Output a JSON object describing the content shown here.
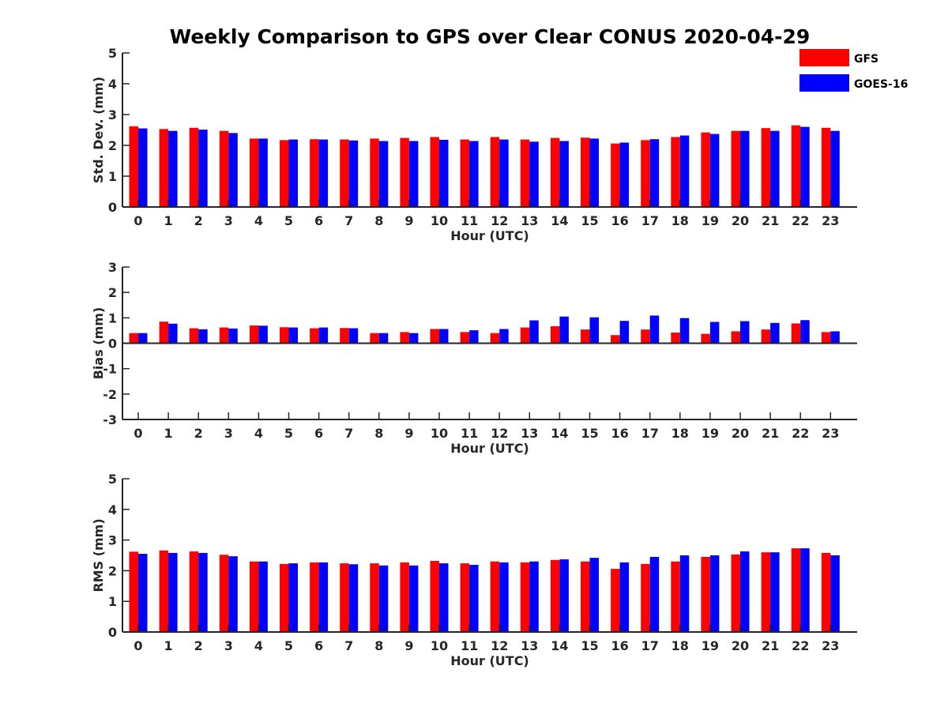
{
  "figure": {
    "title": "Weekly Comparison to GPS over Clear CONUS 2020-04-29"
  },
  "legend": {
    "placement": "top-right",
    "entries": [
      {
        "label": "GFS",
        "color": "#ff0000"
      },
      {
        "label": "GOES-16",
        "color": "#0000ff"
      }
    ]
  },
  "chart_data": [
    {
      "type": "bar",
      "xlabel": "Hour (UTC)",
      "ylabel": "Std. Dev. (mm)",
      "ylim": [
        0,
        5
      ],
      "yticks": [
        0,
        1,
        2,
        3,
        4,
        5
      ],
      "grid": false,
      "categories": [
        "0",
        "1",
        "2",
        "3",
        "4",
        "5",
        "6",
        "7",
        "8",
        "9",
        "10",
        "11",
        "12",
        "13",
        "14",
        "15",
        "16",
        "17",
        "18",
        "19",
        "20",
        "21",
        "22",
        "23"
      ],
      "series": [
        {
          "name": "GFS",
          "color": "#ff0000",
          "values": [
            2.62,
            2.53,
            2.57,
            2.47,
            2.22,
            2.17,
            2.2,
            2.19,
            2.22,
            2.24,
            2.27,
            2.19,
            2.27,
            2.19,
            2.24,
            2.25,
            2.06,
            2.17,
            2.27,
            2.42,
            2.47,
            2.56,
            2.65,
            2.57
          ]
        },
        {
          "name": "GOES-16",
          "color": "#0000ff",
          "values": [
            2.55,
            2.47,
            2.51,
            2.4,
            2.22,
            2.19,
            2.19,
            2.16,
            2.14,
            2.14,
            2.18,
            2.14,
            2.19,
            2.12,
            2.14,
            2.22,
            2.09,
            2.2,
            2.32,
            2.37,
            2.47,
            2.47,
            2.6,
            2.47
          ]
        }
      ]
    },
    {
      "type": "bar",
      "xlabel": "Hour (UTC)",
      "ylabel": "Bias (mm)",
      "ylim": [
        -3,
        3
      ],
      "yticks": [
        -3,
        -2,
        -1,
        0,
        1,
        2,
        3
      ],
      "grid": false,
      "categories": [
        "0",
        "1",
        "2",
        "3",
        "4",
        "5",
        "6",
        "7",
        "8",
        "9",
        "10",
        "11",
        "12",
        "13",
        "14",
        "15",
        "16",
        "17",
        "18",
        "19",
        "20",
        "21",
        "22",
        "23"
      ],
      "series": [
        {
          "name": "GFS",
          "color": "#ff0000",
          "values": [
            0.4,
            0.85,
            0.59,
            0.62,
            0.7,
            0.63,
            0.59,
            0.6,
            0.4,
            0.44,
            0.56,
            0.44,
            0.4,
            0.62,
            0.67,
            0.54,
            0.32,
            0.54,
            0.42,
            0.37,
            0.47,
            0.54,
            0.78,
            0.44
          ]
        },
        {
          "name": "GOES-16",
          "color": "#0000ff",
          "values": [
            0.4,
            0.77,
            0.55,
            0.58,
            0.69,
            0.62,
            0.62,
            0.59,
            0.4,
            0.4,
            0.56,
            0.51,
            0.56,
            0.9,
            1.05,
            1.02,
            0.88,
            1.09,
            0.99,
            0.84,
            0.87,
            0.8,
            0.91,
            0.47
          ]
        }
      ]
    },
    {
      "type": "bar",
      "xlabel": "Hour (UTC)",
      "ylabel": "RMS (mm)",
      "ylim": [
        0,
        5
      ],
      "yticks": [
        0,
        1,
        2,
        3,
        4,
        5
      ],
      "grid": false,
      "categories": [
        "0",
        "1",
        "2",
        "3",
        "4",
        "5",
        "6",
        "7",
        "8",
        "9",
        "10",
        "11",
        "12",
        "13",
        "14",
        "15",
        "16",
        "17",
        "18",
        "19",
        "20",
        "21",
        "22",
        "23"
      ],
      "series": [
        {
          "name": "GFS",
          "color": "#ff0000",
          "values": [
            2.62,
            2.66,
            2.63,
            2.52,
            2.3,
            2.22,
            2.27,
            2.24,
            2.24,
            2.27,
            2.32,
            2.24,
            2.3,
            2.27,
            2.35,
            2.3,
            2.06,
            2.22,
            2.3,
            2.45,
            2.53,
            2.6,
            2.73,
            2.58
          ]
        },
        {
          "name": "GOES-16",
          "color": "#0000ff",
          "values": [
            2.55,
            2.58,
            2.58,
            2.47,
            2.3,
            2.24,
            2.27,
            2.21,
            2.17,
            2.17,
            2.24,
            2.19,
            2.27,
            2.3,
            2.37,
            2.42,
            2.27,
            2.45,
            2.5,
            2.5,
            2.63,
            2.6,
            2.73,
            2.5
          ]
        }
      ]
    }
  ]
}
